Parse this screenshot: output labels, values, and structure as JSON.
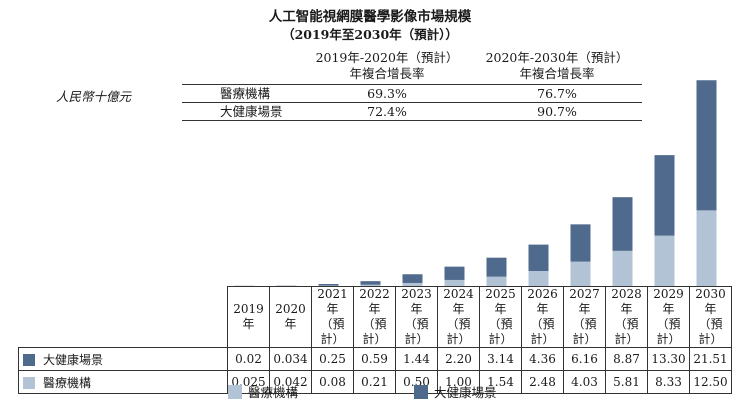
{
  "title": "人工智能視網膜醫學影像市場規模",
  "subtitle": "（2019年至2030年（預計））",
  "unit_label": "人民幣十億元",
  "cagr_table": {
    "headers": [
      "2019年-2020年（預計）\n年複合增長率",
      "2020年-2030年（預計）\n年複合增長率"
    ],
    "rows": [
      {
        "label": "醫療機構",
        "values": [
          "69.3%",
          "76.7%"
        ]
      },
      {
        "label": "大健康場景",
        "values": [
          "72.4%",
          "90.7%"
        ]
      }
    ]
  },
  "colors": {
    "medical": "#b3c3d6",
    "health": "#4f6a8c"
  },
  "chart_data": {
    "type": "bar",
    "stacked": true,
    "categories": [
      "2019年",
      "2020年",
      "2021年\n（預計）",
      "2022年\n（預計）",
      "2023年\n（預計）",
      "2024年\n（預計）",
      "2025年\n（預計）",
      "2026年\n（預計）",
      "2027年\n（預計）",
      "2028年\n（預計）",
      "2029年\n（預計）",
      "2030年\n（預計）"
    ],
    "series": [
      {
        "name": "醫療機構",
        "values": [
          0.025,
          0.042,
          0.08,
          0.21,
          0.5,
          1.0,
          1.54,
          2.48,
          4.03,
          5.81,
          8.33,
          12.5
        ]
      },
      {
        "name": "大健康場景",
        "values": [
          0.02,
          0.034,
          0.25,
          0.59,
          1.44,
          2.2,
          3.14,
          4.36,
          6.16,
          8.87,
          13.3,
          21.51
        ]
      }
    ],
    "display_values": {
      "大健康場景": [
        "0.02",
        "0.034",
        "0.25",
        "0.59",
        "1.44",
        "2.20",
        "3.14",
        "4.36",
        "6.16",
        "8.87",
        "13.30",
        "21.51"
      ],
      "醫療機構": [
        "0.025",
        "0.042",
        "0.08",
        "0.21",
        "0.50",
        "1.00",
        "1.54",
        "2.48",
        "4.03",
        "5.81",
        "8.33",
        "12.50"
      ]
    },
    "legend": [
      "醫療機構",
      "大健康場景"
    ],
    "grid": false
  }
}
